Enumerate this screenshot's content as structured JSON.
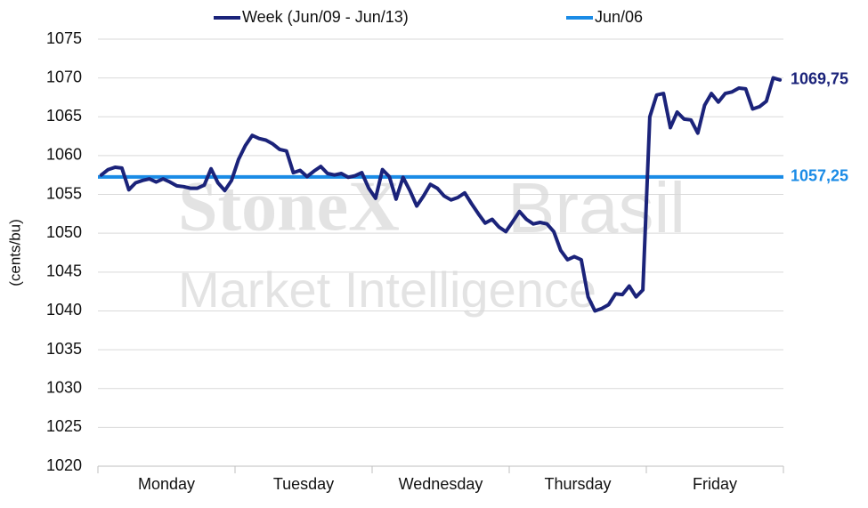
{
  "chart_data": {
    "type": "line",
    "y_axis_label": "(cents/bu)",
    "watermark": [
      "StoneX",
      "Brasil",
      "Market Intelligence"
    ],
    "categories": [
      null,
      null,
      null,
      null,
      null,
      null,
      null,
      null,
      null,
      null,
      "Monday",
      null,
      null,
      null,
      null,
      null,
      null,
      null,
      null,
      null,
      null,
      null,
      null,
      null,
      null,
      null,
      null,
      null,
      null,
      null,
      "Tuesday",
      null,
      null,
      null,
      null,
      null,
      null,
      null,
      null,
      null,
      null,
      null,
      null,
      null,
      null,
      null,
      null,
      null,
      null,
      null,
      "Wednesday",
      null,
      null,
      null,
      null,
      null,
      null,
      null,
      null,
      null,
      null,
      null,
      null,
      null,
      null,
      null,
      null,
      null,
      null,
      null,
      "Thursday",
      null,
      null,
      null,
      null,
      null,
      null,
      null,
      null,
      null,
      null,
      null,
      null,
      null,
      null,
      null,
      null,
      null,
      null,
      null,
      "Friday",
      null,
      null,
      null,
      null,
      null,
      null,
      null,
      null,
      null
    ],
    "series": [
      {
        "name": "Week (Jun/09 - Jun/13)",
        "color": "#1b237a",
        "last_value_label": "1069,75",
        "values": [
          1057.5,
          1058.2,
          1058.5,
          1058.4,
          1055.6,
          1056.5,
          1056.8,
          1057,
          1056.6,
          1057,
          1056.6,
          1056.1,
          1056,
          1055.8,
          1055.8,
          1056.2,
          1058.3,
          1056.5,
          1055.5,
          1056.8,
          1059.5,
          1061.3,
          1062.6,
          1062.2,
          1062,
          1061.5,
          1060.8,
          1060.6,
          1057.8,
          1058.1,
          1057.3,
          1058,
          1058.6,
          1057.7,
          1057.5,
          1057.7,
          1057.2,
          1057.4,
          1057.8,
          1055.8,
          1054.5,
          1058.2,
          1057.3,
          1054.4,
          1057.2,
          1055.5,
          1053.5,
          1054.8,
          1056.3,
          1055.8,
          1054.8,
          1054.3,
          1054.6,
          1055.2,
          1053.8,
          1052.5,
          1051.3,
          1051.8,
          1050.8,
          1050.2,
          1051.5,
          1052.8,
          1051.8,
          1051.2,
          1051.4,
          1051.2,
          1050.2,
          1047.8,
          1046.6,
          1047,
          1046.6,
          1041.8,
          1040,
          1040.3,
          1040.8,
          1042.2,
          1042.1,
          1043.2,
          1041.8,
          1042.7,
          1065,
          1067.8,
          1068,
          1063.6,
          1065.6,
          1064.7,
          1064.6,
          1062.9,
          1066.5,
          1068,
          1066.9,
          1068,
          1068.2,
          1068.7,
          1068.6,
          1066,
          1066.3,
          1067,
          1070,
          1069.75
        ]
      }
    ],
    "reference_line": {
      "name": "Jun/06",
      "color": "#1a8be6",
      "value": 1057.25,
      "value_label": "1057,25"
    },
    "ylim": [
      1020,
      1075
    ],
    "yticks": [
      1020,
      1025,
      1030,
      1035,
      1040,
      1045,
      1050,
      1055,
      1060,
      1065,
      1070,
      1075
    ],
    "grid": true
  }
}
